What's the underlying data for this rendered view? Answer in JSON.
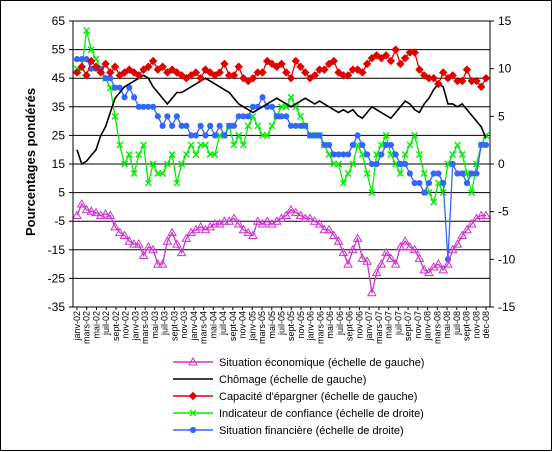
{
  "chart_data": {
    "type": "line",
    "ylabel": "Pourcentages pondérés",
    "y_left": {
      "min": -35,
      "max": 65,
      "ticks": [
        65,
        55,
        45,
        35,
        25,
        15,
        5,
        -5,
        -15,
        -25,
        -35
      ]
    },
    "y_right": {
      "min": -15,
      "max": 15,
      "ticks": [
        15,
        10,
        5,
        0,
        -5,
        -10,
        -15
      ]
    },
    "grid": true,
    "legend_position": "bottom",
    "x_tick_labels": [
      "janv-02",
      "mars-02",
      "mai-02",
      "juil-02",
      "sept-02",
      "nov-02",
      "janv-03",
      "mars-03",
      "mai-03",
      "juil-03",
      "sept-03",
      "nov-03",
      "janv-04",
      "mars-04",
      "mai-04",
      "juil-04",
      "sept-04",
      "nov-04",
      "janv-05",
      "mars-05",
      "mai-05",
      "juil-05",
      "sept-05",
      "nov-05",
      "janv-06",
      "mars-06",
      "mai-06",
      "juil-06",
      "sept-06",
      "nov-06",
      "janv-07",
      "mars-07",
      "mai-07",
      "juil-07",
      "sept-07",
      "nov-07",
      "janv-08",
      "mars-08",
      "mai-08",
      "juil-08",
      "sept-08",
      "nov-08",
      "déc-08"
    ],
    "series": [
      {
        "name": "Situation économique (échelle de gauche)",
        "axis": "left",
        "color": "#cc33cc",
        "marker": "triangle",
        "values": [
          -3,
          1,
          -1,
          -1.5,
          -2,
          -3,
          -2.5,
          -3,
          -7,
          -9,
          -10,
          -12,
          -13,
          -13,
          -17,
          -14,
          -15,
          -20,
          -20,
          -12,
          -9,
          -13,
          -16,
          -11,
          -9,
          -8,
          -7,
          -8,
          -7,
          -6,
          -6,
          -5,
          -5,
          -4,
          -6,
          -8,
          -9,
          -10,
          -5,
          -6,
          -5,
          -6,
          -5,
          -4,
          -3,
          -1,
          -2,
          -3,
          -4,
          -4,
          -5,
          -6,
          -8,
          -8,
          -10,
          -12,
          -16,
          -20,
          -15,
          -11,
          -18,
          -19,
          -30,
          -23,
          -20,
          -16,
          -18,
          -20,
          -14,
          -12,
          -14,
          -15,
          -18,
          -22,
          -23,
          -21,
          -20,
          -22,
          -20,
          -15,
          -13,
          -10,
          -8,
          -6,
          -4,
          -3,
          -3
        ]
      },
      {
        "name": "Chômage (échelle de gauche)",
        "axis": "left",
        "color": "#000000",
        "marker": "none",
        "values": [
          20,
          15,
          16,
          18,
          20,
          25,
          28,
          33,
          38,
          40,
          42,
          43,
          44,
          45,
          46,
          45,
          42,
          40,
          38,
          36,
          38,
          40,
          40,
          41,
          42,
          43,
          44,
          45,
          44,
          43,
          42,
          41,
          40,
          38,
          36,
          35,
          34,
          33,
          34,
          35,
          36,
          37,
          38,
          37,
          36,
          35,
          36,
          37,
          38,
          37,
          36,
          37,
          36,
          35,
          34,
          33,
          34,
          33,
          34,
          32,
          31,
          33,
          35,
          34,
          33,
          32,
          31,
          33,
          35,
          37,
          36,
          34,
          33,
          36,
          38,
          41,
          43,
          42,
          36,
          36,
          35,
          36,
          34,
          32,
          30,
          28,
          24
        ]
      },
      {
        "name": "Capacité d'épargner (échelle de gauche)",
        "axis": "left",
        "color": "#e00000",
        "marker": "diamond",
        "values": [
          47,
          49,
          46,
          51,
          49,
          47,
          50,
          47,
          49,
          46,
          47,
          48,
          47,
          46,
          48,
          49,
          51,
          48,
          49,
          47,
          48,
          47,
          46,
          45,
          46,
          47,
          45,
          48,
          47,
          46,
          47,
          50,
          46,
          46,
          49,
          45,
          44,
          45,
          47,
          47,
          51,
          50,
          49,
          50,
          47,
          45,
          51,
          49,
          47,
          45,
          46,
          48,
          48,
          50,
          51,
          47,
          46,
          46,
          48,
          48,
          47,
          50,
          52,
          53,
          52,
          53,
          51,
          55,
          50,
          52,
          54,
          54,
          48,
          46,
          45,
          45,
          43,
          47,
          45,
          46,
          44,
          44,
          48,
          44,
          44,
          42,
          45
        ]
      },
      {
        "name": "Indicateur de confiance (échelle de droite)",
        "axis": "right",
        "color": "#00ee00",
        "marker": "x",
        "values": [
          10,
          10,
          14,
          12,
          11,
          10,
          9,
          8,
          5,
          2,
          0,
          1,
          -1,
          1,
          2,
          -2,
          0,
          -1,
          -1,
          0,
          1,
          -2,
          0,
          1,
          2,
          1,
          2,
          2,
          1,
          1,
          3,
          3,
          4,
          2,
          3,
          2,
          4,
          5,
          4,
          3,
          3,
          4,
          5,
          6,
          6,
          7,
          6,
          5,
          4,
          3,
          3,
          3,
          2,
          1,
          0,
          0,
          -2,
          -1,
          0,
          2,
          1,
          -1,
          -3,
          1,
          2,
          3,
          1,
          0,
          -1,
          1,
          2,
          3,
          1,
          -1,
          -3,
          -4,
          -2,
          -3,
          0,
          1,
          2,
          1,
          -1,
          -3,
          0,
          2,
          3
        ]
      },
      {
        "name": "Situation financière (échelle de droite)",
        "axis": "right",
        "color": "#3366ff",
        "marker": "circle",
        "values": [
          11,
          11,
          11,
          10,
          10,
          10,
          9,
          9,
          8,
          8,
          7,
          8,
          7,
          6,
          6,
          6,
          6,
          5,
          4,
          5,
          4,
          5,
          4,
          4,
          3,
          3,
          4,
          3,
          4,
          3,
          4,
          3,
          4,
          4,
          5,
          5,
          5,
          6,
          6,
          7,
          6,
          6,
          5,
          5,
          5,
          4,
          4,
          4,
          4,
          3,
          3,
          3,
          2,
          2,
          1,
          1,
          1,
          1,
          2,
          3,
          2,
          1,
          0,
          0,
          1,
          2,
          2,
          1,
          0,
          0,
          -1,
          -2,
          -2,
          -3,
          -2,
          -1,
          -1,
          -2,
          -10,
          0,
          -1,
          -1,
          -2,
          -1,
          -1,
          2,
          2
        ]
      }
    ]
  }
}
